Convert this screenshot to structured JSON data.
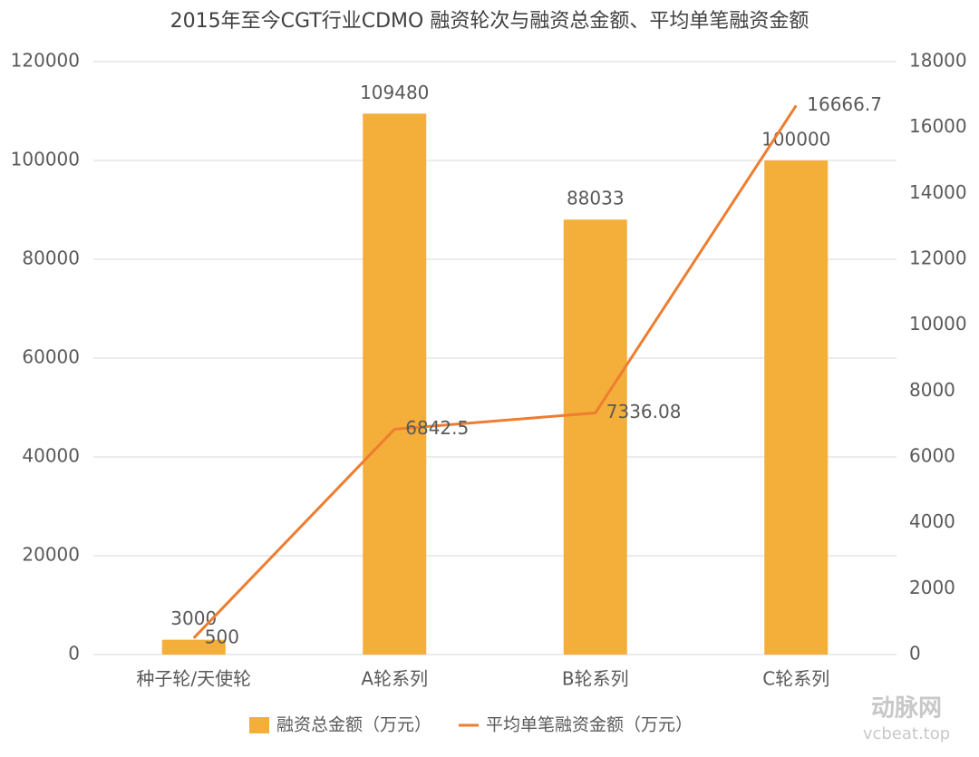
{
  "chart_data": {
    "type": "bar+line",
    "title": "2015年至今CGT行业CDMO 融资轮次与融资总金额、平均单笔融资金额",
    "categories": [
      "种子轮/天使轮",
      "A轮系列",
      "B轮系列",
      "C轮系列"
    ],
    "series": [
      {
        "name": "融资总金额（万元）",
        "type": "bar",
        "color": "#f4ae3a",
        "values": [
          3000,
          109480,
          88033,
          100000
        ]
      },
      {
        "name": "平均单笔融资金额（万元）",
        "type": "line",
        "axis": "y2",
        "color": "#ed7d31",
        "values": [
          500,
          6842.5,
          7336.08,
          16666.7
        ]
      }
    ],
    "ylim": [
      0,
      120000
    ],
    "yticks": [
      0,
      20000,
      40000,
      60000,
      80000,
      100000,
      120000
    ],
    "y2lim": [
      0,
      18000
    ],
    "y2ticks": [
      0,
      2000,
      4000,
      6000,
      8000,
      10000,
      12000,
      14000,
      16000,
      18000
    ],
    "grid": true,
    "legend": "bottom",
    "watermark": {
      "brand": "动脉网",
      "site": "vcbeat.top"
    }
  }
}
